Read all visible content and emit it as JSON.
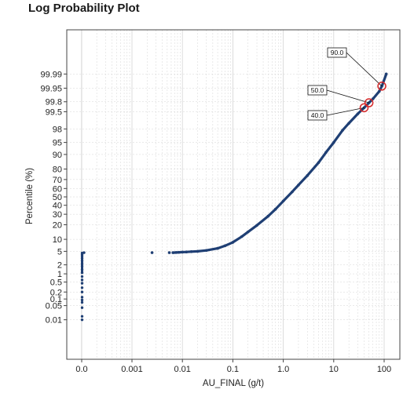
{
  "page": {
    "title": "Log Probability Plot"
  },
  "colors": {
    "points": "#1f3f74",
    "highlight": "#d62728",
    "grid": "#d4d4d4",
    "frame": "#444444"
  },
  "chart_data": {
    "type": "scatter",
    "title": "Log Probability Plot",
    "xlabel": "AU_FINAL (g/t)",
    "ylabel": "Percentile (%)",
    "x_scale": "log",
    "y_scale": "probability",
    "x_tick_labels": [
      "0.0",
      "0.001",
      "0.01",
      "0.1",
      "1.0",
      "10",
      "100"
    ],
    "y_ticks": [
      0.01,
      0.05,
      0.1,
      0.2,
      0.5,
      1,
      2,
      5,
      10,
      20,
      30,
      40,
      50,
      60,
      70,
      80,
      90,
      95,
      98,
      99.5,
      99.8,
      99.95,
      99.99
    ],
    "y_tick_labels": [
      "0.01",
      "0.05",
      "0.1",
      "0.2",
      "0.5",
      "1",
      "2",
      "5",
      "10",
      "20",
      "30",
      "40",
      "50",
      "60",
      "70",
      "80",
      "90",
      "95",
      "98",
      "99.5",
      "99.8",
      "99.95",
      "99.99"
    ],
    "grid": true,
    "zero_value_percentiles": [
      0.01,
      0.015,
      0.04,
      0.07,
      0.09,
      0.12,
      0.2,
      0.3,
      0.45,
      0.6,
      0.8,
      1.1,
      1.4,
      1.8,
      2.2,
      2.7,
      3.2,
      3.7,
      4.1,
      4.5
    ],
    "series": [
      {
        "marker": "dot",
        "x": [
          0.0025,
          0.0055,
          0.0065,
          0.0075,
          0.0085,
          0.01,
          0.012,
          0.015,
          0.02,
          0.03,
          0.05,
          0.07,
          0.1,
          0.15,
          0.2,
          0.3,
          0.5,
          0.7,
          1.0,
          1.5,
          2,
          3,
          5,
          7,
          10,
          15,
          20,
          30,
          40,
          50,
          60,
          80,
          90,
          110
        ],
        "y": [
          4.6,
          4.6,
          4.6,
          4.65,
          4.7,
          4.75,
          4.8,
          4.9,
          5.0,
          5.3,
          6.0,
          7.0,
          8.5,
          11.5,
          14.5,
          19.5,
          28.0,
          35.5,
          45.0,
          56.0,
          64.0,
          74.0,
          85.0,
          91.0,
          95.0,
          97.8,
          98.7,
          99.4,
          99.65,
          99.78,
          99.85,
          99.93,
          99.96,
          99.99
        ]
      }
    ],
    "annotations": [
      {
        "label": "90.0",
        "x": 90,
        "y": 99.96
      },
      {
        "label": "50.0",
        "x": 50,
        "y": 99.78
      },
      {
        "label": "40.0",
        "x": 40,
        "y": 99.65
      }
    ]
  }
}
